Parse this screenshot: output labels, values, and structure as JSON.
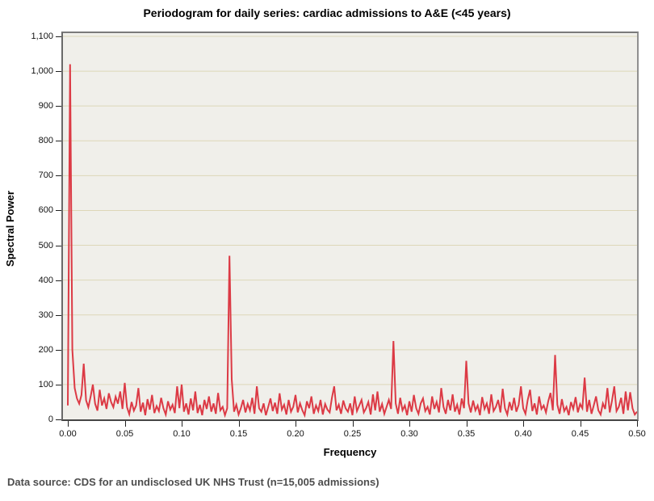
{
  "chart_data": {
    "type": "line",
    "title": "Periodogram for daily series: cardiac admissions to A&E (<45 years)",
    "xlabel": "Frequency",
    "ylabel": "Spectral Power",
    "xlim": [
      0,
      0.5
    ],
    "ylim": [
      0,
      1100
    ],
    "grid": "horizontal-only",
    "legend": "none",
    "line_color": "#dc3a45",
    "plot_bg": "#f0efea",
    "grid_color": "#ddd7b8",
    "x_ticks": [
      {
        "value": 0.0,
        "label": "0.00"
      },
      {
        "value": 0.05,
        "label": "0.05"
      },
      {
        "value": 0.1,
        "label": "0.10"
      },
      {
        "value": 0.15,
        "label": "0.15"
      },
      {
        "value": 0.2,
        "label": "0.20"
      },
      {
        "value": 0.25,
        "label": "0.25"
      },
      {
        "value": 0.3,
        "label": "0.30"
      },
      {
        "value": 0.35,
        "label": "0.35"
      },
      {
        "value": 0.4,
        "label": "0.40"
      },
      {
        "value": 0.45,
        "label": "0.45"
      },
      {
        "value": 0.5,
        "label": "0.50"
      }
    ],
    "y_ticks": [
      {
        "value": 0,
        "label": "0"
      },
      {
        "value": 100,
        "label": "100"
      },
      {
        "value": 200,
        "label": "200"
      },
      {
        "value": 300,
        "label": "300"
      },
      {
        "value": 400,
        "label": "400"
      },
      {
        "value": 500,
        "label": "500"
      },
      {
        "value": 600,
        "label": "600"
      },
      {
        "value": 700,
        "label": "700"
      },
      {
        "value": 800,
        "label": "800"
      },
      {
        "value": 900,
        "label": "900"
      },
      {
        "value": 1000,
        "label": "1,000"
      },
      {
        "value": 1100,
        "label": "1,100"
      }
    ],
    "notable_peaks": [
      {
        "frequency": 0.002,
        "power": 1020
      },
      {
        "frequency": 0.143,
        "power": 470
      },
      {
        "frequency": 0.286,
        "power": 225
      },
      {
        "frequency": 0.35,
        "power": 170
      },
      {
        "frequency": 0.429,
        "power": 185
      },
      {
        "frequency": 0.455,
        "power": 120
      }
    ],
    "series": [
      {
        "name": "periodogram",
        "x_start": 0,
        "x_step": 0.002,
        "values": [
          40,
          1020,
          200,
          90,
          60,
          45,
          70,
          160,
          55,
          35,
          65,
          100,
          45,
          25,
          85,
          40,
          60,
          30,
          75,
          50,
          35,
          65,
          45,
          80,
          30,
          105,
          35,
          15,
          50,
          25,
          40,
          90,
          22,
          48,
          12,
          58,
          28,
          70,
          18,
          38,
          24,
          62,
          32,
          14,
          52,
          28,
          42,
          18,
          95,
          32,
          100,
          22,
          46,
          14,
          60,
          26,
          80,
          18,
          42,
          12,
          56,
          30,
          66,
          22,
          46,
          16,
          76,
          26,
          36,
          12,
          32,
          470,
          115,
          22,
          42,
          14,
          32,
          56,
          20,
          44,
          26,
          62,
          16,
          95,
          32,
          22,
          46,
          12,
          36,
          60,
          24,
          48,
          16,
          75,
          28,
          42,
          14,
          56,
          22,
          36,
          70,
          20,
          46,
          26,
          12,
          52,
          32,
          66,
          16,
          40,
          24,
          56,
          14,
          44,
          28,
          20,
          62,
          95,
          26,
          42,
          16,
          54,
          32,
          22,
          46,
          12,
          66,
          24,
          40,
          56,
          20,
          32,
          50,
          14,
          72,
          26,
          80,
          22,
          44,
          16,
          36,
          56,
          30,
          225,
          46,
          16,
          62,
          26,
          40,
          12,
          52,
          22,
          70,
          32,
          16,
          46,
          60,
          24,
          36,
          14,
          66,
          30,
          50,
          20,
          90,
          36,
          16,
          56,
          26,
          72,
          22,
          42,
          14,
          60,
          32,
          168,
          46,
          20,
          54,
          26,
          40,
          12,
          64,
          30,
          46,
          16,
          72,
          24,
          36,
          56,
          20,
          88,
          32,
          14,
          50,
          26,
          62,
          22,
          42,
          95,
          32,
          16,
          56,
          85,
          24,
          46,
          14,
          66,
          30,
          40,
          20,
          52,
          76,
          26,
          185,
          42,
          16,
          58,
          24,
          36,
          12,
          50,
          30,
          64,
          20,
          44,
          32,
          120,
          22,
          56,
          16,
          40,
          66,
          26,
          14,
          46,
          30,
          90,
          20,
          54,
          95,
          24,
          36,
          62,
          16,
          80,
          26,
          78,
          32,
          14,
          22
        ]
      }
    ]
  },
  "footer": {
    "text": "Data source: CDS for an undisclosed UK NHS Trust (n=15,005 admissions)"
  }
}
